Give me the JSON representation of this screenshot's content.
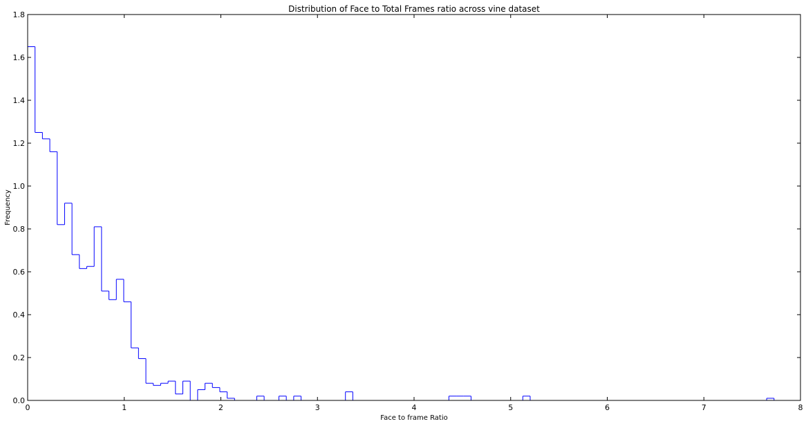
{
  "chart_data": {
    "type": "histogram",
    "title": "Distribution of Face to Total Frames ratio across  vine dataset",
    "xlabel": "Face to frame Ratio",
    "ylabel": "Frequency",
    "xlim": [
      0,
      8
    ],
    "ylim": [
      0,
      1.8
    ],
    "xticks": [
      0,
      1,
      2,
      3,
      4,
      5,
      6,
      7,
      8
    ],
    "yticks": [
      0.0,
      0.2,
      0.4,
      0.6,
      0.8,
      1.0,
      1.2,
      1.4,
      1.6,
      1.8
    ],
    "xtick_labels": [
      "0",
      "1",
      "2",
      "3",
      "4",
      "5",
      "6",
      "7",
      "8"
    ],
    "ytick_labels": [
      "0.0",
      "0.2",
      "0.4",
      "0.6",
      "0.8",
      "1.0",
      "1.2",
      "1.4",
      "1.6",
      "1.8"
    ],
    "bin_width": 0.0765,
    "x_start": 0,
    "values": [
      1.65,
      1.25,
      1.22,
      1.16,
      0.82,
      0.92,
      0.68,
      0.615,
      0.625,
      0.81,
      0.51,
      0.47,
      0.565,
      0.46,
      0.245,
      0.195,
      0.08,
      0.07,
      0.08,
      0.09,
      0.03,
      0.09,
      0.0,
      0.05,
      0.08,
      0.06,
      0.04,
      0.01,
      0.0,
      0.0,
      0.0,
      0.02,
      0.0,
      0.0,
      0.02,
      0.0,
      0.02,
      0.0,
      0.0,
      0.0,
      0.0,
      0.0,
      0.0,
      0.04,
      0.0,
      0.0,
      0.0,
      0.0,
      0.0,
      0.0,
      0.0,
      0.0,
      0.0,
      0.0,
      0.0,
      0.0,
      0.0,
      0.02,
      0.02,
      0.02,
      0.0,
      0.0,
      0.0,
      0.0,
      0.0,
      0.0,
      0.0,
      0.02,
      0.0,
      0.0,
      0.0,
      0.0,
      0.0,
      0.0,
      0.0,
      0.0,
      0.0,
      0.0,
      0.0,
      0.0,
      0.0,
      0.0,
      0.0,
      0.0,
      0.0,
      0.0,
      0.0,
      0.0,
      0.0,
      0.0,
      0.0,
      0.0,
      0.0,
      0.0,
      0.0,
      0.0,
      0.0,
      0.0,
      0.0,
      0.0,
      0.01
    ],
    "color": "#0000ff",
    "grid": false,
    "legend": "none"
  }
}
